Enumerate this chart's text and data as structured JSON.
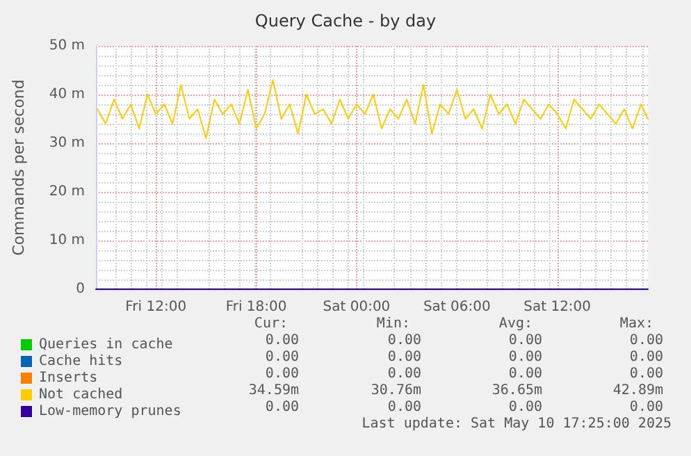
{
  "chart_data": {
    "type": "line",
    "title": "Query Cache - by day",
    "ylabel": "Commands per second",
    "x": [
      "2025-05-09T08:30",
      "2025-05-09T09:00",
      "2025-05-09T09:30",
      "2025-05-09T10:00",
      "2025-05-09T10:30",
      "2025-05-09T11:00",
      "2025-05-09T11:30",
      "2025-05-09T12:00",
      "2025-05-09T12:30",
      "2025-05-09T13:00",
      "2025-05-09T13:30",
      "2025-05-09T14:00",
      "2025-05-09T14:30",
      "2025-05-09T15:00",
      "2025-05-09T15:30",
      "2025-05-09T16:00",
      "2025-05-09T16:30",
      "2025-05-09T17:00",
      "2025-05-09T17:30",
      "2025-05-09T18:00",
      "2025-05-09T18:30",
      "2025-05-09T19:00",
      "2025-05-09T19:30",
      "2025-05-09T20:00",
      "2025-05-09T20:30",
      "2025-05-09T21:00",
      "2025-05-09T21:30",
      "2025-05-09T22:00",
      "2025-05-09T22:30",
      "2025-05-09T23:00",
      "2025-05-09T23:30",
      "2025-05-10T00:00",
      "2025-05-10T00:30",
      "2025-05-10T01:00",
      "2025-05-10T01:30",
      "2025-05-10T02:00",
      "2025-05-10T02:30",
      "2025-05-10T03:00",
      "2025-05-10T03:30",
      "2025-05-10T04:00",
      "2025-05-10T04:30",
      "2025-05-10T05:00",
      "2025-05-10T05:30",
      "2025-05-10T06:00",
      "2025-05-10T06:30",
      "2025-05-10T07:00",
      "2025-05-10T07:30",
      "2025-05-10T08:00",
      "2025-05-10T08:30",
      "2025-05-10T09:00",
      "2025-05-10T09:30",
      "2025-05-10T10:00",
      "2025-05-10T10:30",
      "2025-05-10T11:00",
      "2025-05-10T11:30",
      "2025-05-10T12:00",
      "2025-05-10T12:30",
      "2025-05-10T13:00",
      "2025-05-10T13:30",
      "2025-05-10T14:00",
      "2025-05-10T14:30",
      "2025-05-10T15:00",
      "2025-05-10T15:30",
      "2025-05-10T16:00",
      "2025-05-10T16:30",
      "2025-05-10T17:00",
      "2025-05-10T17:25"
    ],
    "series": [
      {
        "name": "Queries in cache",
        "color": "#00cc00",
        "values": [
          null,
          null,
          null,
          null,
          null,
          null,
          null,
          null,
          null,
          null,
          null,
          null,
          null,
          null,
          null,
          null,
          null,
          null,
          null,
          null,
          null,
          null,
          null,
          null,
          null,
          null,
          null,
          null,
          null,
          null,
          null,
          null,
          null,
          null,
          null,
          null,
          null,
          null,
          null,
          null,
          null,
          null,
          null,
          null,
          null,
          null,
          null,
          null,
          null,
          null,
          null,
          null,
          null,
          null,
          null,
          null,
          null,
          null,
          null,
          null,
          null,
          null,
          null,
          null,
          null,
          null,
          null
        ]
      },
      {
        "name": "Cache hits",
        "color": "#0066b3",
        "values": [
          null,
          null,
          null,
          null,
          null,
          null,
          null,
          null,
          null,
          null,
          null,
          null,
          null,
          null,
          null,
          null,
          null,
          null,
          null,
          null,
          null,
          null,
          null,
          null,
          null,
          null,
          null,
          null,
          null,
          null,
          null,
          null,
          null,
          null,
          null,
          null,
          null,
          null,
          null,
          null,
          null,
          null,
          null,
          null,
          null,
          null,
          null,
          null,
          null,
          null,
          null,
          null,
          null,
          null,
          null,
          null,
          null,
          null,
          null,
          null,
          null,
          null,
          null,
          null,
          null,
          null,
          null
        ]
      },
      {
        "name": "Inserts",
        "color": "#ff8000",
        "values": [
          null,
          null,
          null,
          null,
          null,
          null,
          null,
          null,
          null,
          null,
          null,
          null,
          null,
          null,
          null,
          null,
          null,
          null,
          null,
          null,
          null,
          null,
          null,
          null,
          null,
          null,
          null,
          null,
          null,
          null,
          null,
          null,
          null,
          null,
          null,
          null,
          null,
          null,
          null,
          null,
          null,
          null,
          null,
          null,
          null,
          null,
          null,
          null,
          null,
          null,
          null,
          null,
          null,
          null,
          null,
          null,
          null,
          null,
          null,
          null,
          null,
          null,
          null,
          null,
          null,
          null,
          null
        ]
      },
      {
        "name": "Not cached",
        "color": "#ffcc00",
        "values": [
          37,
          34,
          39,
          35,
          38,
          33,
          40,
          36,
          38,
          34,
          42,
          35,
          37,
          31,
          39,
          36,
          38,
          34,
          41,
          33,
          36,
          43,
          35,
          38,
          32,
          40,
          36,
          37,
          34,
          39,
          35,
          38,
          36,
          40,
          33,
          37,
          35,
          39,
          34,
          42,
          32,
          38,
          36,
          41,
          35,
          37,
          33,
          40,
          36,
          38,
          34,
          39,
          37,
          35,
          38,
          36,
          33,
          39,
          37,
          35,
          38,
          36,
          34,
          37,
          33,
          38,
          35
        ]
      },
      {
        "name": "Low-memory prunes",
        "color": "#330099",
        "x": [
          "2025-05-09T08:25",
          "2025-05-10T17:25"
        ],
        "values": [
          0,
          0
        ]
      }
    ],
    "xlim": [
      "2025-05-09T08:25",
      "2025-05-10T17:25"
    ],
    "xticks": [
      {
        "value": "2025-05-09T12:00",
        "label": "Fri 12:00"
      },
      {
        "value": "2025-05-09T18:00",
        "label": "Fri 18:00"
      },
      {
        "value": "2025-05-10T00:00",
        "label": "Sat 00:00"
      },
      {
        "value": "2025-05-10T06:00",
        "label": "Sat 06:00"
      },
      {
        "value": "2025-05-10T12:00",
        "label": "Sat 12:00"
      }
    ],
    "ylim": [
      0,
      50
    ],
    "yticks": [
      0,
      {
        "value": 10,
        "label": "10 m"
      },
      {
        "value": 20,
        "label": "20 m"
      },
      {
        "value": 30,
        "label": "30 m"
      },
      {
        "value": 40,
        "label": "40 m"
      },
      {
        "value": 50,
        "label": "50 m"
      }
    ],
    "grid": true,
    "legend": "bottom left",
    "marker": "none",
    "line_style": "solid",
    "annotations": [
      "Cur:",
      "Min:",
      "Avg:",
      "Max:",
      "0.00",
      "0.00",
      "0.00",
      "0.00",
      "0.00",
      "0.00",
      "0.00",
      "0.00",
      "0.00",
      "0.00",
      "0.00",
      "0.00",
      "34.59m",
      "30.76m",
      "36.65m",
      "42.89m",
      "0.00",
      "0.00",
      "0.00",
      "0.00",
      "Last update: Sat May 10 17:25:00 2025"
    ]
  }
}
